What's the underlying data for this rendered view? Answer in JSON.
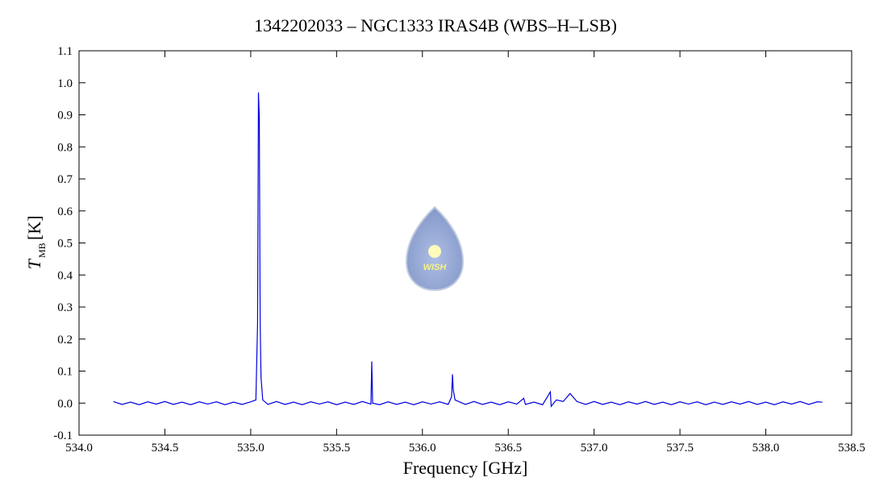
{
  "chart_data": {
    "type": "line",
    "title": "1342202033 – NGC1333 IRAS4B (WBS–H–LSB)",
    "x_label": "Frequency [GHz]",
    "y_label": "T",
    "y_label_sub": "MB",
    "y_label_unit": "[K]",
    "logo_text": "WISH",
    "color": "#0000dd",
    "xlim": [
      534.0,
      538.5
    ],
    "ylim": [
      -0.1,
      1.1
    ],
    "xticks": [
      {
        "value": 534.0,
        "label": "534.0"
      },
      534.5,
      {
        "value": 535.0,
        "label": "535.0"
      },
      535.5,
      {
        "value": 536.0,
        "label": "536.0"
      },
      536.5,
      {
        "value": 537.0,
        "label": "537.0"
      },
      537.5,
      {
        "value": 538.0,
        "label": "538.0"
      },
      538.5
    ],
    "yticks": [
      -0.1,
      {
        "value": 0.0,
        "label": "0.0"
      },
      0.1,
      0.2,
      0.3,
      0.4,
      0.5,
      0.6,
      0.7,
      0.8,
      0.9,
      {
        "value": 1.0,
        "label": "1.0"
      },
      1.1
    ],
    "x": [
      534.2,
      534.25,
      534.3,
      534.35,
      534.4,
      534.45,
      534.5,
      534.55,
      534.6,
      534.65,
      534.7,
      534.75,
      534.8,
      534.85,
      534.9,
      534.95,
      535.0,
      535.03,
      535.04,
      535.045,
      535.05,
      535.055,
      535.06,
      535.07,
      535.1,
      535.15,
      535.2,
      535.25,
      535.3,
      535.35,
      535.4,
      535.45,
      535.5,
      535.55,
      535.6,
      535.65,
      535.7,
      535.705,
      535.71,
      535.75,
      535.8,
      535.85,
      535.9,
      535.95,
      536.0,
      536.05,
      536.1,
      536.15,
      536.17,
      536.175,
      536.18,
      536.19,
      536.25,
      536.3,
      536.35,
      536.4,
      536.45,
      536.5,
      536.55,
      536.59,
      536.6,
      536.65,
      536.7,
      536.745,
      536.75,
      536.78,
      536.82,
      536.86,
      536.9,
      536.95,
      537.0,
      537.05,
      537.1,
      537.15,
      537.2,
      537.25,
      537.3,
      537.35,
      537.4,
      537.45,
      537.5,
      537.55,
      537.6,
      537.65,
      537.7,
      537.75,
      537.8,
      537.85,
      537.9,
      537.95,
      538.0,
      538.05,
      538.1,
      538.15,
      538.2,
      538.25,
      538.3,
      538.33
    ],
    "values": [
      0.005,
      -0.004,
      0.003,
      -0.005,
      0.004,
      -0.003,
      0.005,
      -0.004,
      0.003,
      -0.005,
      0.004,
      -0.003,
      0.004,
      -0.005,
      0.003,
      -0.004,
      0.004,
      0.01,
      0.25,
      0.97,
      0.89,
      0.25,
      0.08,
      0.01,
      -0.004,
      0.005,
      -0.004,
      0.003,
      -0.005,
      0.004,
      -0.003,
      0.004,
      -0.005,
      0.003,
      -0.004,
      0.005,
      -0.003,
      0.13,
      0.0,
      -0.005,
      0.004,
      -0.004,
      0.003,
      -0.005,
      0.004,
      -0.003,
      0.004,
      -0.004,
      0.02,
      0.09,
      0.04,
      0.01,
      -0.004,
      0.005,
      -0.004,
      0.003,
      -0.005,
      0.004,
      -0.003,
      0.015,
      -0.004,
      0.003,
      -0.005,
      0.035,
      -0.01,
      0.01,
      0.005,
      0.03,
      0.005,
      -0.004,
      0.005,
      -0.004,
      0.003,
      -0.005,
      0.004,
      -0.003,
      0.005,
      -0.004,
      0.003,
      -0.005,
      0.004,
      -0.003,
      0.004,
      -0.005,
      0.003,
      -0.004,
      0.004,
      -0.003,
      0.005,
      -0.004,
      0.003,
      -0.005,
      0.004,
      -0.003,
      0.005,
      -0.004,
      0.004,
      0.003
    ]
  }
}
